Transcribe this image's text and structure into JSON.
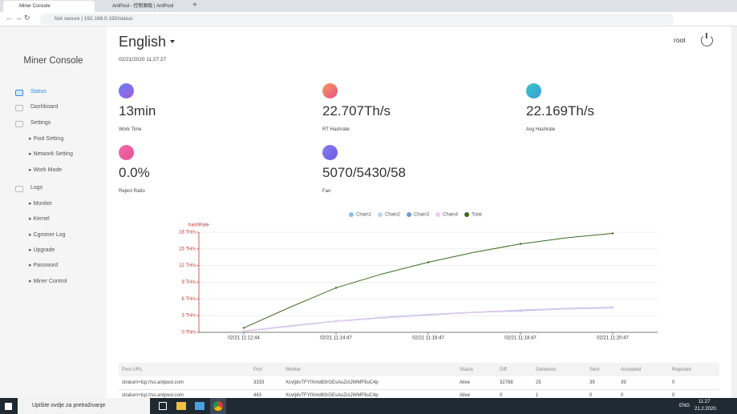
{
  "browser": {
    "tabs": [
      "Miner Console",
      "AntPool - 控制面板 | AntPool"
    ],
    "security": "Not secure",
    "url": "192.168.0.192/status"
  },
  "sidebar": {
    "title": "Miner Console",
    "menu": [
      {
        "label": "Status"
      },
      {
        "label": "Dashboard"
      },
      {
        "label": "Settings",
        "children": [
          "Pool Setting",
          "Network Setting",
          "Work Mode"
        ]
      },
      {
        "label": "Logs",
        "children": [
          "Monitor",
          "Kernel",
          "Cgminer Log",
          "Upgrade",
          "Password",
          "Miner Control"
        ]
      }
    ]
  },
  "header": {
    "language": "English",
    "datetime": "02/21/2020 11:27:27",
    "user": "root"
  },
  "stats": [
    {
      "value": "13min",
      "label": "Work Time"
    },
    {
      "value": "22.707Th/s",
      "label": "RT Hashrate"
    },
    {
      "value": "22.169Th/s",
      "label": "Avg Hashrate"
    },
    {
      "value": "0.0%",
      "label": "Reject Ratio"
    },
    {
      "value": "5070/5430/58",
      "label": "Fan"
    }
  ],
  "chart_data": {
    "type": "line",
    "y_label": "hashRate",
    "categories": [
      "02/21 11:12:44",
      null,
      "02/21 11:14:47",
      null,
      "02/21 11:16:47",
      null,
      "02/21 11:18:47",
      null,
      "02/21 11:20:47"
    ],
    "series": [
      {
        "name": "Chain1",
        "color": "#7fc4ea",
        "values": [
          0.2,
          1.1,
          2.0,
          2.6,
          3.2,
          3.6,
          4.0,
          4.3,
          4.5
        ]
      },
      {
        "name": "Chain2",
        "color": "#b4d9ec",
        "values": [
          0.2,
          1.2,
          2.0,
          2.7,
          3.2,
          3.6,
          4.0,
          4.3,
          4.5
        ]
      },
      {
        "name": "Chain3",
        "color": "#6c9fd6",
        "values": [
          0.2,
          1.1,
          2.0,
          2.6,
          3.1,
          3.6,
          3.9,
          4.2,
          4.4
        ]
      },
      {
        "name": "Chain4",
        "color": "#efc9ef",
        "values": [
          0.2,
          1.1,
          2.0,
          2.6,
          3.1,
          3.6,
          4.0,
          4.2,
          4.4
        ]
      },
      {
        "name": "Total",
        "color": "#3b6a1e",
        "values": [
          0.8,
          4.5,
          8.0,
          10.5,
          12.6,
          14.4,
          15.9,
          17.0,
          17.8
        ]
      }
    ],
    "ylim": [
      0,
      18
    ],
    "yticks": [
      {
        "value": 0,
        "label": "0 TH/s"
      },
      {
        "value": 3,
        "label": "3 TH/s"
      },
      {
        "value": 6,
        "label": "6 TH/s"
      },
      {
        "value": 9,
        "label": "9 TH/s"
      },
      {
        "value": 12,
        "label": "12 TH/s"
      },
      {
        "value": 15,
        "label": "15 TH/s"
      },
      {
        "value": 18,
        "label": "18 TH/s"
      }
    ],
    "grid": true,
    "legend": "top"
  },
  "table": {
    "headers": [
      "Pool URL",
      "Port",
      "Worker",
      "Status",
      "Diff",
      "Getworks",
      "Sent",
      "Accepted",
      "Rejected"
    ],
    "rows": [
      [
        "stratum+tcp://ss.antpool.com",
        "3333",
        "XcvtjdvTFYfXmd83rGEsAuZctJWMF9uC4p",
        "Alive",
        "32768",
        "25",
        "39",
        "39",
        "0"
      ],
      [
        "stratum+tcp://ss.antpool.com",
        "443",
        "XcvtjdvTFYfXmd83rGEsAuZctJWMF9uC4p",
        "Alive",
        "0",
        "1",
        "0",
        "0",
        "0"
      ]
    ]
  },
  "taskbar": {
    "search": "Upišite ovdje za pretraživanje",
    "language": "ENG",
    "time": "11:27",
    "date": "21.2.2020."
  }
}
